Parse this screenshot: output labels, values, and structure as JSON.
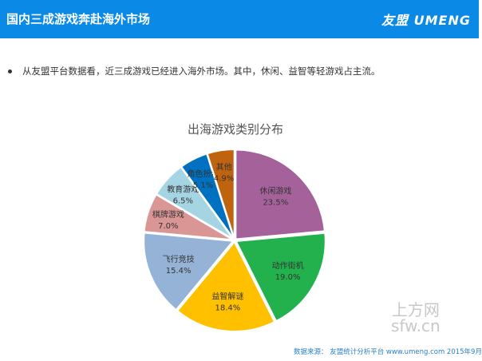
{
  "header": {
    "title": "国内三成游戏奔赴海外市场",
    "logo": "友盟 UMENG"
  },
  "bullet": "从友盟平台数据看，近三成游戏已经进入海外市场。其中，休闲、益智等轻游戏占主流。",
  "chart_data": {
    "type": "pie",
    "title": "出海游戏类别分布",
    "categories": [
      "休闲游戏",
      "动作街机",
      "益智解谜",
      "飞行竞技",
      "棋牌游戏",
      "教育游戏",
      "角色扮演",
      "其他"
    ],
    "values": [
      23.5,
      19.0,
      18.4,
      15.4,
      7.0,
      6.5,
      5.1,
      4.9
    ],
    "labels": [
      "23.5%",
      "19.0%",
      "18.4%",
      "15.4%",
      "7.0%",
      "6.5%",
      "5.1%",
      "4.9%"
    ],
    "colors": [
      "#A5629A",
      "#22B14C",
      "#FFC000",
      "#95B3D7",
      "#D99694",
      "#A5D5E2",
      "#0070C0",
      "#C0630F"
    ]
  },
  "watermark": {
    "line1": "上方网",
    "line2": "sfw.cn"
  },
  "source": "数据来源： 友盟统计分析平台 www.umeng.com  2015年9月"
}
